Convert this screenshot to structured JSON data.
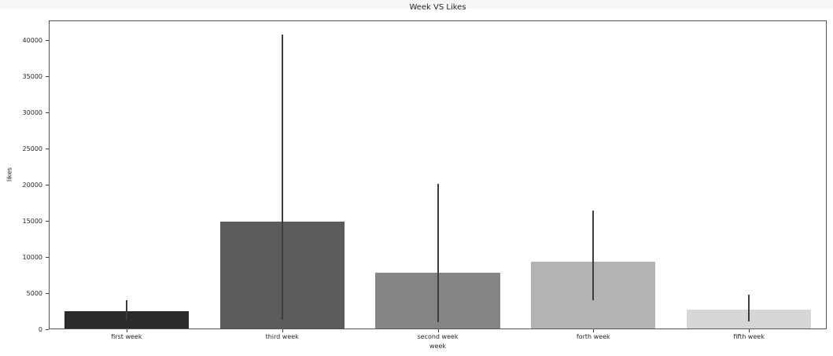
{
  "page": {
    "top_strip_color": "#f6f6f7",
    "figure_background": "#ffffff",
    "spine_color": "#555555",
    "text_color": "#262626"
  },
  "chart_data": {
    "type": "bar",
    "title": "Week VS Likes",
    "xlabel": "week",
    "ylabel": "likes",
    "categories": [
      "first week",
      "third week",
      "second week",
      "forth week",
      "fifth week"
    ],
    "values": [
      2550,
      14900,
      7800,
      9400,
      2700
    ],
    "error_intervals": [
      [
        1300,
        4000
      ],
      [
        1300,
        40850
      ],
      [
        950,
        20100
      ],
      [
        4050,
        16400
      ],
      [
        1100,
        4800
      ]
    ],
    "bar_colors": [
      "#2b2b2b",
      "#5b5b5b",
      "#858585",
      "#b3b3b3",
      "#d6d6d6"
    ],
    "error_bar_color": "#3d3d3d",
    "yticks": [
      0,
      5000,
      10000,
      15000,
      20000,
      25000,
      30000,
      35000,
      40000
    ],
    "ylim": [
      0,
      42800
    ],
    "bar_width_fraction": 0.8,
    "grid": false,
    "legend": null
  }
}
